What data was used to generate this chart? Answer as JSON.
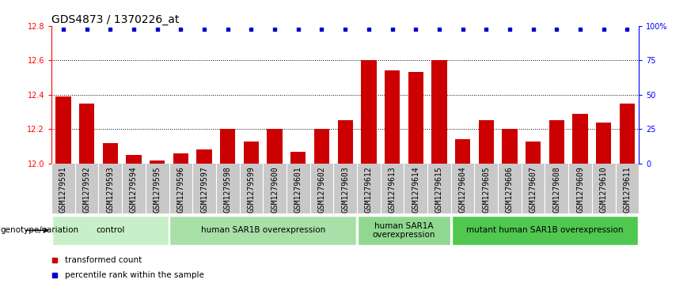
{
  "title": "GDS4873 / 1370226_at",
  "samples": [
    "GSM1279591",
    "GSM1279592",
    "GSM1279593",
    "GSM1279594",
    "GSM1279595",
    "GSM1279596",
    "GSM1279597",
    "GSM1279598",
    "GSM1279599",
    "GSM1279600",
    "GSM1279601",
    "GSM1279602",
    "GSM1279603",
    "GSM1279612",
    "GSM1279613",
    "GSM1279614",
    "GSM1279615",
    "GSM1279604",
    "GSM1279605",
    "GSM1279606",
    "GSM1279607",
    "GSM1279608",
    "GSM1279609",
    "GSM1279610",
    "GSM1279611"
  ],
  "values": [
    12.39,
    12.35,
    12.12,
    12.05,
    12.02,
    12.06,
    12.08,
    12.2,
    12.13,
    12.2,
    12.07,
    12.2,
    12.25,
    12.6,
    12.54,
    12.53,
    12.6,
    12.14,
    12.25,
    12.2,
    12.13,
    12.25,
    12.29,
    12.24,
    12.35
  ],
  "bar_color": "#cc0000",
  "dot_color": "#0000cc",
  "ylim": [
    12.0,
    12.8
  ],
  "yticks": [
    12.0,
    12.2,
    12.4,
    12.6,
    12.8
  ],
  "right_yticks": [
    0,
    25,
    50,
    75,
    100
  ],
  "right_yticklabels": [
    "0",
    "25",
    "50",
    "75",
    "100%"
  ],
  "groups": [
    {
      "label": "control",
      "start": 0,
      "end": 5,
      "color": "#c8f0c8"
    },
    {
      "label": "human SAR1B overexpression",
      "start": 5,
      "end": 13,
      "color": "#a8e0a8"
    },
    {
      "label": "human SAR1A\noverexpression",
      "start": 13,
      "end": 17,
      "color": "#90d890"
    },
    {
      "label": "mutant human SAR1B overexpression",
      "start": 17,
      "end": 25,
      "color": "#50c850"
    }
  ],
  "genotype_label": "genotype/variation",
  "legend_items": [
    {
      "label": "transformed count",
      "color": "#cc0000"
    },
    {
      "label": "percentile rank within the sample",
      "color": "#0000cc"
    }
  ],
  "title_fontsize": 10,
  "tick_fontsize": 7,
  "group_fontsize": 7.5,
  "legend_fontsize": 7.5,
  "xtick_bg_color": "#c8c8c8"
}
